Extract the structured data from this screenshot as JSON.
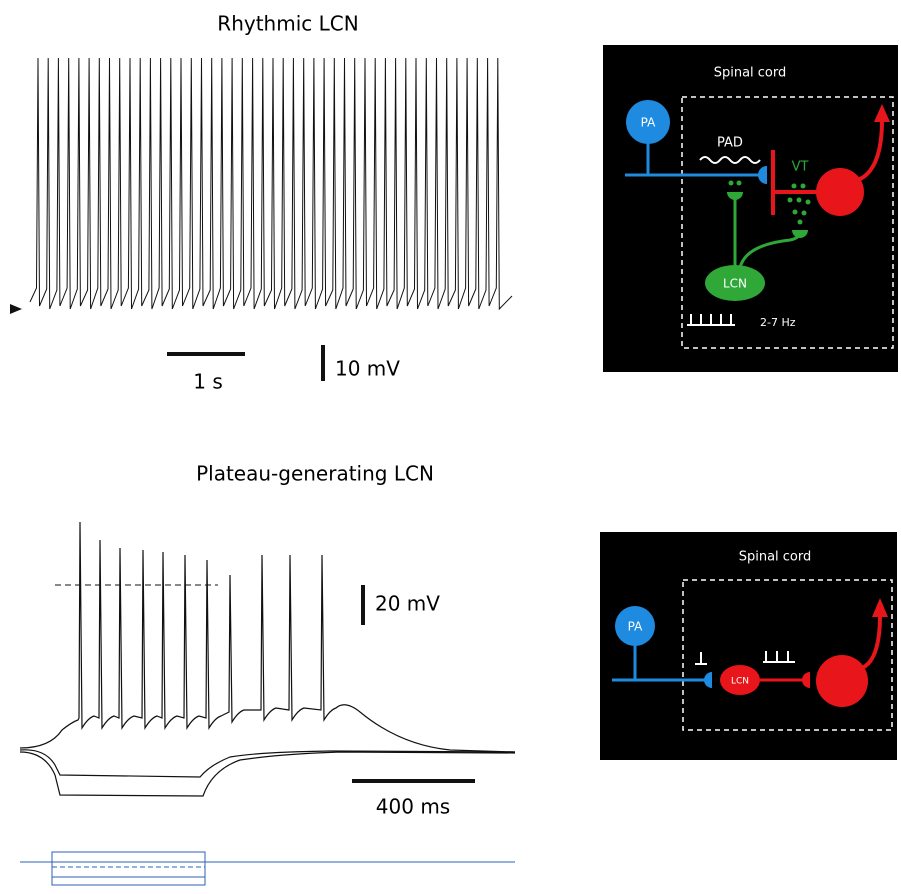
{
  "panels": [
    {
      "title": "Rhythmic LCN",
      "scale_bars": {
        "time": "1 s",
        "voltage": "10 mV"
      },
      "diagram": {
        "title": "Spinal cord",
        "pa": "PA",
        "pad": "PAD",
        "vt": "VT",
        "lcn": "LCN",
        "frequency": "2-7 Hz"
      }
    },
    {
      "title": "Plateau-generating LCN",
      "scale_bars": {
        "voltage": "20 mV",
        "time": "400 ms"
      },
      "diagram": {
        "title": "Spinal cord",
        "pa": "PA",
        "lcn": "LCN"
      }
    }
  ]
}
